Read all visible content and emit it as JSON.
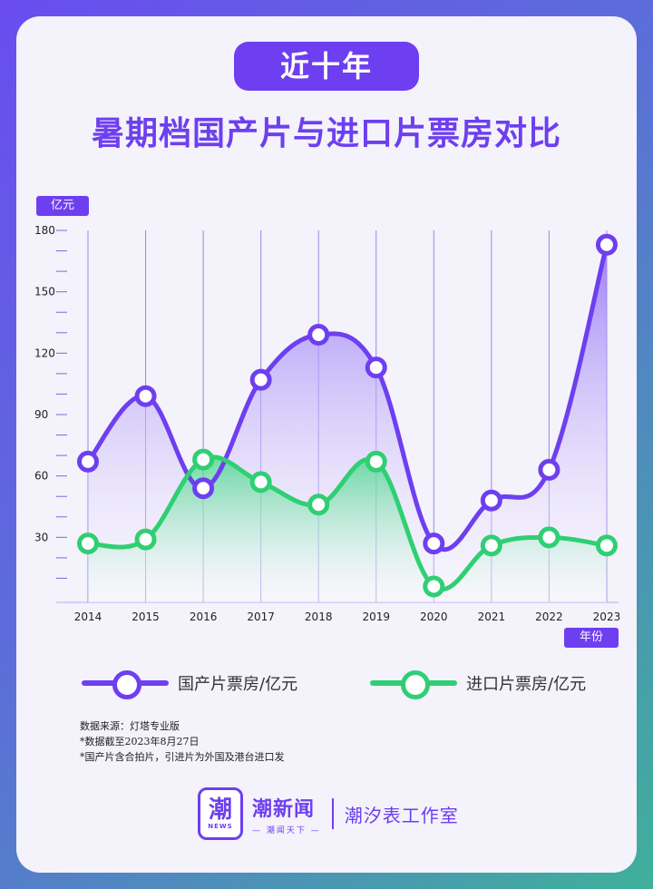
{
  "header": {
    "pill": "近十年",
    "title": "暑期档国产片与进口片票房对比"
  },
  "axis": {
    "y_unit": "亿元",
    "x_unit": "年份"
  },
  "colors": {
    "domestic": "#6d3ff0",
    "imported": "#2fcf73",
    "accent": "#6d3ff0"
  },
  "chart_data": {
    "type": "line",
    "categories": [
      "2014",
      "2015",
      "2016",
      "2017",
      "2018",
      "2019",
      "2020",
      "2021",
      "2022",
      "2023"
    ],
    "series": [
      {
        "name": "国产片票房/亿元",
        "values": [
          67,
          99,
          54,
          107,
          129,
          113,
          27,
          48,
          63,
          173
        ]
      },
      {
        "name": "进口片票房/亿元",
        "values": [
          27,
          29,
          68,
          57,
          46,
          67,
          6,
          26,
          30,
          26
        ]
      }
    ],
    "yticks": [
      30,
      60,
      90,
      120,
      150,
      180
    ],
    "ylim": [
      0,
      180
    ],
    "ylabel": "亿元",
    "xlabel": "年份",
    "grid": "vertical",
    "legend_position": "bottom"
  },
  "legend": {
    "domestic": "国产片票房/亿元",
    "imported": "进口片票房/亿元"
  },
  "notes": {
    "source": "数据来源：灯塔专业版",
    "cutoff": "*数据截至2023年8月27日",
    "definition": "*国产片含合拍片，引进片为外国及港台进口发"
  },
  "brand": {
    "logo_glyph": "潮",
    "logo_sub": "NEWS",
    "name": "潮新闻",
    "slogan": "— 潮闻天下 —",
    "studio": "潮汐表工作室"
  }
}
